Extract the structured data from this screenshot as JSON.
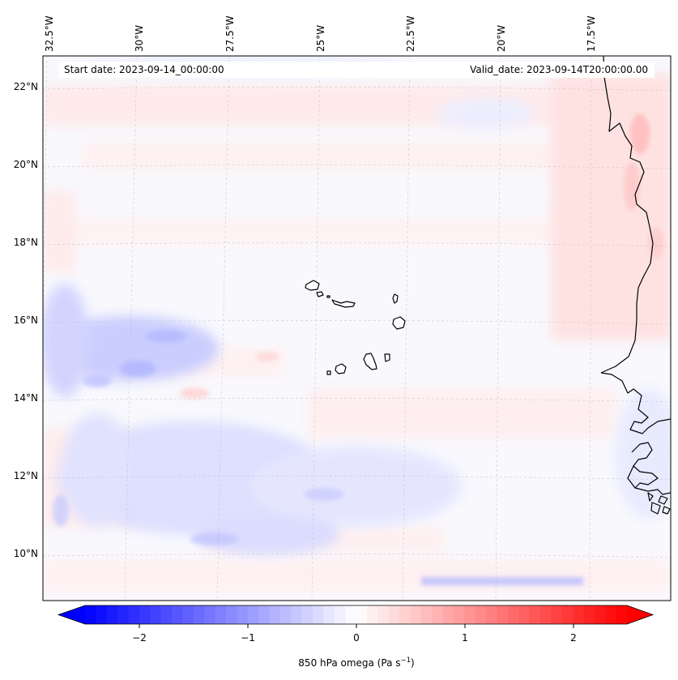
{
  "map": {
    "start_date": "Start date: 2023-09-14_00:00:00",
    "valid_date": "Valid_date: 2023-09-14T20:00:00.00",
    "top_lon_labels": [
      "32.5°W",
      "30°W",
      "27.5°W",
      "25°W",
      "22.5°W",
      "20°W",
      "17.5°W"
    ],
    "left_lat_labels": [
      "22°N",
      "20°N",
      "18°N",
      "16°N",
      "14°N",
      "12°N",
      "10°N"
    ]
  },
  "colorbar": {
    "label_prefix": "850 hPa omega (Pa s",
    "label_exp": "−1",
    "label_suffix": ")",
    "tick_labels": [
      "−2",
      "−1",
      "0",
      "1",
      "2"
    ],
    "range": [
      -2.5,
      2.5
    ],
    "neg_color": "#0000ff",
    "zero_color": "#ffffff",
    "pos_color": "#ff0000"
  },
  "colors": {
    "land_fill": "#ffffff",
    "coastline": "#000000",
    "gridline": "#b9b9b9"
  }
}
